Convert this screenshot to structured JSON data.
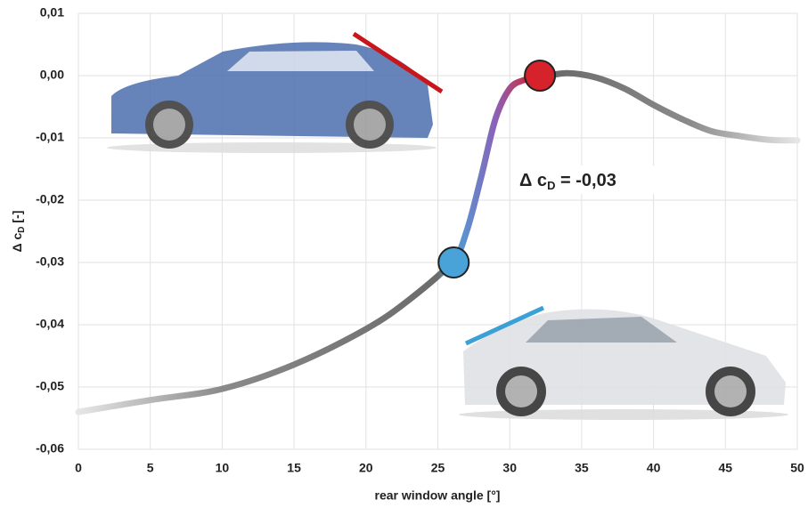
{
  "chart_data": {
    "type": "line",
    "xlabel": "rear window angle [°]",
    "ylabel": {
      "main": "Δ c",
      "sub": "D",
      "rest": " [-]"
    },
    "annotation": {
      "main": "Δ c",
      "sub": "D",
      "rest": " = -0,03"
    },
    "xlim": [
      0,
      50
    ],
    "xticks": [
      0,
      5,
      10,
      15,
      20,
      25,
      30,
      35,
      40,
      45,
      50
    ],
    "ylim": [
      -0.06,
      0.01
    ],
    "yticks": [
      {
        "value": 0.01,
        "label": "0,01"
      },
      {
        "value": 0.0,
        "label": "0,00"
      },
      {
        "value": -0.01,
        "label": "-0,01"
      },
      {
        "value": -0.02,
        "label": "-0,02"
      },
      {
        "value": -0.03,
        "label": "-0,03"
      },
      {
        "value": -0.04,
        "label": "-0,04"
      },
      {
        "value": -0.05,
        "label": "-0,05"
      },
      {
        "value": -0.06,
        "label": "-0,06"
      }
    ],
    "grid": true,
    "line": {
      "color": "#6b6b6b",
      "x": [
        0,
        5,
        10,
        15,
        20,
        23,
        26,
        27,
        28,
        29,
        30,
        31,
        32,
        34,
        36,
        38,
        40,
        42,
        44,
        46,
        48,
        50
      ],
      "values": [
        -0.054,
        -0.0521,
        -0.0503,
        -0.0464,
        -0.0407,
        -0.036,
        -0.0299,
        -0.025,
        -0.0164,
        -0.007,
        -0.0021,
        -0.0007,
        -0.0003,
        0.0004,
        -0.0003,
        -0.0021,
        -0.0047,
        -0.007,
        -0.0089,
        -0.0097,
        -0.0103,
        -0.0104
      ]
    },
    "points": {
      "x": [
        26.1,
        32.1
      ],
      "values": [
        -0.03,
        0.0
      ],
      "colors": [
        "#4aa3d8",
        "#d6222a"
      ]
    }
  }
}
